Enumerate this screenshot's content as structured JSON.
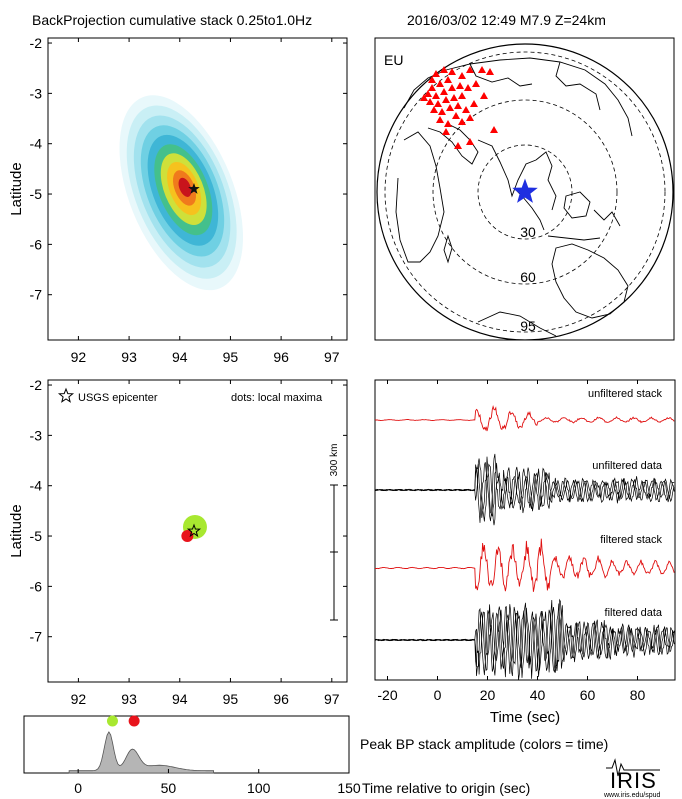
{
  "header": {
    "title": "BackProjection cumulative stack 0.25to1.0Hz",
    "event": "2016/03/02 12:49   M7.9  Z=24km"
  },
  "chart_data": [
    {
      "id": "bp-stack-map",
      "type": "heatmap",
      "ylabel": "Latitude",
      "xlim": [
        91.4,
        97.3
      ],
      "ylim": [
        -7.9,
        -1.9
      ],
      "xticks": [
        92,
        93,
        94,
        95,
        96,
        97
      ],
      "yticks": [
        -2,
        -3,
        -4,
        -5,
        -6,
        -7
      ],
      "peak": {
        "lon": 94.0,
        "lat": -4.9
      },
      "epicenter": {
        "lon": 94.28,
        "lat": -4.9
      },
      "colormap": [
        "#e8f8fb",
        "#c9eff5",
        "#a2e2ee",
        "#6fd0e3",
        "#3fb6d6",
        "#44c08c",
        "#cfe03a",
        "#f6c21e",
        "#f07a1c",
        "#c8141c"
      ]
    },
    {
      "id": "station-map",
      "type": "scatter",
      "label": "EU",
      "rings": [
        "30",
        "60",
        "95"
      ],
      "station_color": "#ff0000",
      "epicenter_color": "#1f2fe0"
    },
    {
      "id": "local-maxima",
      "type": "scatter",
      "ylabel": "Latitude",
      "legend_epicenter": "USGS epicenter",
      "legend_dots": "dots: local maxima",
      "scalebar_label": "300 km",
      "xlim": [
        91.4,
        97.3
      ],
      "ylim": [
        -7.9,
        -1.9
      ],
      "xticks": [
        92,
        93,
        94,
        95,
        96,
        97
      ],
      "yticks": [
        -2,
        -3,
        -4,
        -5,
        -6,
        -7
      ],
      "dots": [
        {
          "lon": 94.3,
          "lat": -4.82,
          "time": 19,
          "color": "#a8e830"
        },
        {
          "lon": 94.15,
          "lat": -5.0,
          "time": 31,
          "color": "#e8141c"
        }
      ],
      "epicenter": {
        "lon": 94.28,
        "lat": -4.9
      }
    },
    {
      "id": "seismograms",
      "type": "line",
      "xlabel": "Time (sec)",
      "xlim": [
        -25,
        95
      ],
      "xticks": [
        -20,
        0,
        20,
        40,
        60,
        80
      ],
      "traces": [
        {
          "name": "unfiltered stack",
          "color": "#e01010"
        },
        {
          "name": "unfiltered data",
          "color": "#000000"
        },
        {
          "name": "filtered stack",
          "color": "#e01010"
        },
        {
          "name": "filtered data",
          "color": "#000000"
        }
      ]
    },
    {
      "id": "peak-amplitude",
      "type": "area",
      "title": "Peak BP stack amplitude (colors = time)",
      "xlabel": "Time relative to origin (sec)",
      "xlim": [
        -30,
        150
      ],
      "xticks": [
        0,
        50,
        100,
        150
      ],
      "peaks": [
        {
          "time": 19,
          "color": "#a8e830"
        },
        {
          "time": 31,
          "color": "#e8141c"
        }
      ]
    }
  ],
  "logo": {
    "name": "IRIS",
    "url_text": "www.iris.edu/spud"
  }
}
